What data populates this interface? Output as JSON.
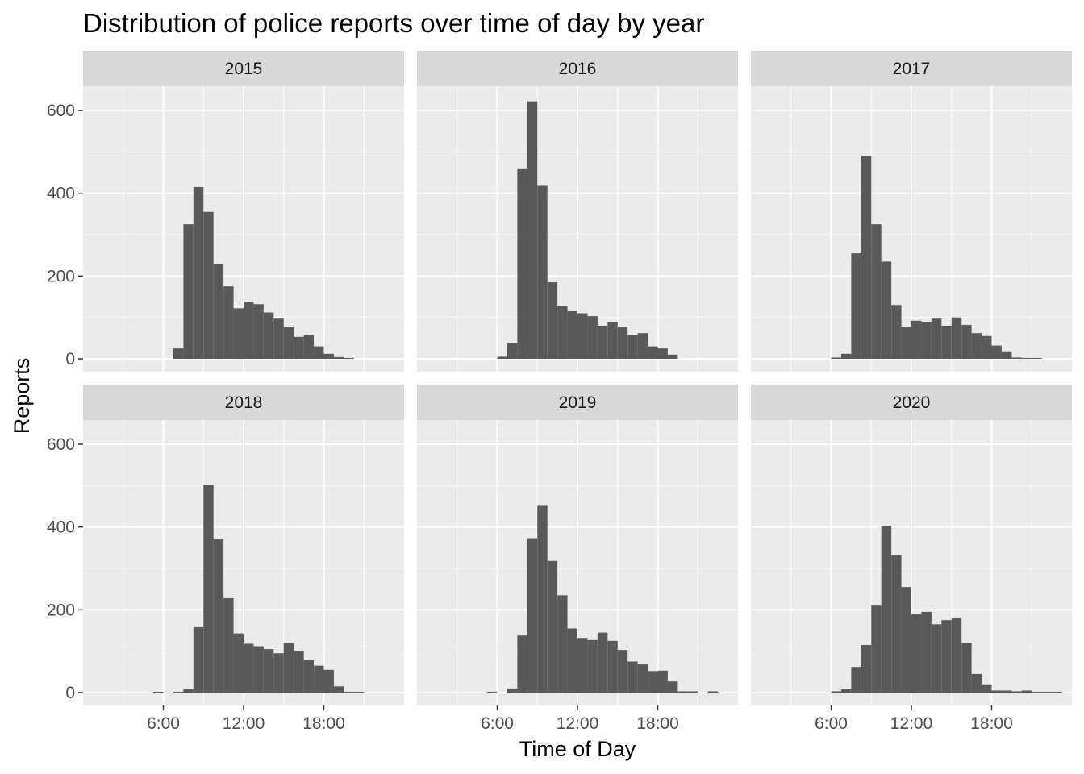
{
  "chart_data": {
    "type": "bar",
    "subtype": "faceted-histogram",
    "title": "Distribution of police reports over time of day by year",
    "xlabel": "Time of Day",
    "ylabel": "Reports",
    "x_unit": "hours",
    "xlim": [
      0,
      24
    ],
    "ylim": [
      0,
      650
    ],
    "x_ticks": [
      {
        "value": 6,
        "label": "6:00"
      },
      {
        "value": 12,
        "label": "12:00"
      },
      {
        "value": 18,
        "label": "18:00"
      }
    ],
    "y_ticks": [
      {
        "value": 0,
        "label": "0"
      },
      {
        "value": 200,
        "label": "200"
      },
      {
        "value": 400,
        "label": "400"
      },
      {
        "value": 600,
        "label": "600"
      }
    ],
    "bin_width_hours": 0.75,
    "grid": true,
    "facet_layout": {
      "rows": 2,
      "cols": 3
    },
    "colors": {
      "bar": "#595959",
      "panel": "#ebebeb",
      "strip": "#d9d9d9",
      "grid": "#ffffff"
    },
    "facets": [
      {
        "label": "2015",
        "bins": [
          {
            "x": 7.125,
            "y": 25
          },
          {
            "x": 7.875,
            "y": 325
          },
          {
            "x": 8.625,
            "y": 415
          },
          {
            "x": 9.375,
            "y": 355
          },
          {
            "x": 10.125,
            "y": 228
          },
          {
            "x": 10.875,
            "y": 175
          },
          {
            "x": 11.625,
            "y": 122
          },
          {
            "x": 12.375,
            "y": 138
          },
          {
            "x": 13.125,
            "y": 132
          },
          {
            "x": 13.875,
            "y": 112
          },
          {
            "x": 14.625,
            "y": 97
          },
          {
            "x": 15.375,
            "y": 78
          },
          {
            "x": 16.125,
            "y": 53
          },
          {
            "x": 16.875,
            "y": 57
          },
          {
            "x": 17.625,
            "y": 30
          },
          {
            "x": 18.375,
            "y": 12
          },
          {
            "x": 19.125,
            "y": 4
          },
          {
            "x": 19.875,
            "y": 2
          }
        ]
      },
      {
        "label": "2016",
        "bins": [
          {
            "x": 6.375,
            "y": 5
          },
          {
            "x": 7.125,
            "y": 38
          },
          {
            "x": 7.875,
            "y": 460
          },
          {
            "x": 8.625,
            "y": 622
          },
          {
            "x": 9.375,
            "y": 418
          },
          {
            "x": 10.125,
            "y": 185
          },
          {
            "x": 10.875,
            "y": 128
          },
          {
            "x": 11.625,
            "y": 115
          },
          {
            "x": 12.375,
            "y": 110
          },
          {
            "x": 13.125,
            "y": 103
          },
          {
            "x": 13.875,
            "y": 80
          },
          {
            "x": 14.625,
            "y": 88
          },
          {
            "x": 15.375,
            "y": 78
          },
          {
            "x": 16.125,
            "y": 57
          },
          {
            "x": 16.875,
            "y": 62
          },
          {
            "x": 17.625,
            "y": 30
          },
          {
            "x": 18.375,
            "y": 25
          },
          {
            "x": 19.125,
            "y": 10
          }
        ]
      },
      {
        "label": "2017",
        "bins": [
          {
            "x": 6.375,
            "y": 3
          },
          {
            "x": 7.125,
            "y": 12
          },
          {
            "x": 7.875,
            "y": 255
          },
          {
            "x": 8.625,
            "y": 490
          },
          {
            "x": 9.375,
            "y": 325
          },
          {
            "x": 10.125,
            "y": 235
          },
          {
            "x": 10.875,
            "y": 130
          },
          {
            "x": 11.625,
            "y": 78
          },
          {
            "x": 12.375,
            "y": 92
          },
          {
            "x": 13.125,
            "y": 88
          },
          {
            "x": 13.875,
            "y": 97
          },
          {
            "x": 14.625,
            "y": 80
          },
          {
            "x": 15.375,
            "y": 100
          },
          {
            "x": 16.125,
            "y": 82
          },
          {
            "x": 16.875,
            "y": 62
          },
          {
            "x": 17.625,
            "y": 55
          },
          {
            "x": 18.375,
            "y": 32
          },
          {
            "x": 19.125,
            "y": 18
          },
          {
            "x": 19.875,
            "y": 3
          },
          {
            "x": 20.625,
            "y": 2
          },
          {
            "x": 21.375,
            "y": 2
          }
        ]
      },
      {
        "label": "2018",
        "bins": [
          {
            "x": 5.625,
            "y": 2
          },
          {
            "x": 7.125,
            "y": 2
          },
          {
            "x": 7.875,
            "y": 8
          },
          {
            "x": 8.625,
            "y": 158
          },
          {
            "x": 9.375,
            "y": 502
          },
          {
            "x": 10.125,
            "y": 370
          },
          {
            "x": 10.875,
            "y": 228
          },
          {
            "x": 11.625,
            "y": 143
          },
          {
            "x": 12.375,
            "y": 118
          },
          {
            "x": 13.125,
            "y": 112
          },
          {
            "x": 13.875,
            "y": 105
          },
          {
            "x": 14.625,
            "y": 95
          },
          {
            "x": 15.375,
            "y": 120
          },
          {
            "x": 16.125,
            "y": 100
          },
          {
            "x": 16.875,
            "y": 78
          },
          {
            "x": 17.625,
            "y": 65
          },
          {
            "x": 18.375,
            "y": 55
          },
          {
            "x": 19.125,
            "y": 15
          },
          {
            "x": 19.875,
            "y": 2
          },
          {
            "x": 20.625,
            "y": 2
          }
        ]
      },
      {
        "label": "2019",
        "bins": [
          {
            "x": 5.625,
            "y": 2
          },
          {
            "x": 7.125,
            "y": 10
          },
          {
            "x": 7.875,
            "y": 138
          },
          {
            "x": 8.625,
            "y": 373
          },
          {
            "x": 9.375,
            "y": 453
          },
          {
            "x": 10.125,
            "y": 318
          },
          {
            "x": 10.875,
            "y": 235
          },
          {
            "x": 11.625,
            "y": 155
          },
          {
            "x": 12.375,
            "y": 132
          },
          {
            "x": 13.125,
            "y": 127
          },
          {
            "x": 13.875,
            "y": 145
          },
          {
            "x": 14.625,
            "y": 125
          },
          {
            "x": 15.375,
            "y": 103
          },
          {
            "x": 16.125,
            "y": 75
          },
          {
            "x": 16.875,
            "y": 68
          },
          {
            "x": 17.625,
            "y": 52
          },
          {
            "x": 18.375,
            "y": 53
          },
          {
            "x": 19.125,
            "y": 27
          },
          {
            "x": 19.875,
            "y": 3
          },
          {
            "x": 20.625,
            "y": 3
          },
          {
            "x": 22.125,
            "y": 3
          }
        ]
      },
      {
        "label": "2020",
        "bins": [
          {
            "x": 6.375,
            "y": 3
          },
          {
            "x": 7.125,
            "y": 8
          },
          {
            "x": 7.875,
            "y": 62
          },
          {
            "x": 8.625,
            "y": 115
          },
          {
            "x": 9.375,
            "y": 210
          },
          {
            "x": 10.125,
            "y": 403
          },
          {
            "x": 10.875,
            "y": 333
          },
          {
            "x": 11.625,
            "y": 255
          },
          {
            "x": 12.375,
            "y": 190
          },
          {
            "x": 13.125,
            "y": 195
          },
          {
            "x": 13.875,
            "y": 165
          },
          {
            "x": 14.625,
            "y": 175
          },
          {
            "x": 15.375,
            "y": 180
          },
          {
            "x": 16.125,
            "y": 120
          },
          {
            "x": 16.875,
            "y": 45
          },
          {
            "x": 17.625,
            "y": 20
          },
          {
            "x": 18.375,
            "y": 5
          },
          {
            "x": 19.125,
            "y": 5
          },
          {
            "x": 19.875,
            "y": 3
          },
          {
            "x": 20.625,
            "y": 5
          },
          {
            "x": 21.375,
            "y": 2
          },
          {
            "x": 22.125,
            "y": 2
          },
          {
            "x": 22.875,
            "y": 2
          }
        ]
      }
    ]
  }
}
